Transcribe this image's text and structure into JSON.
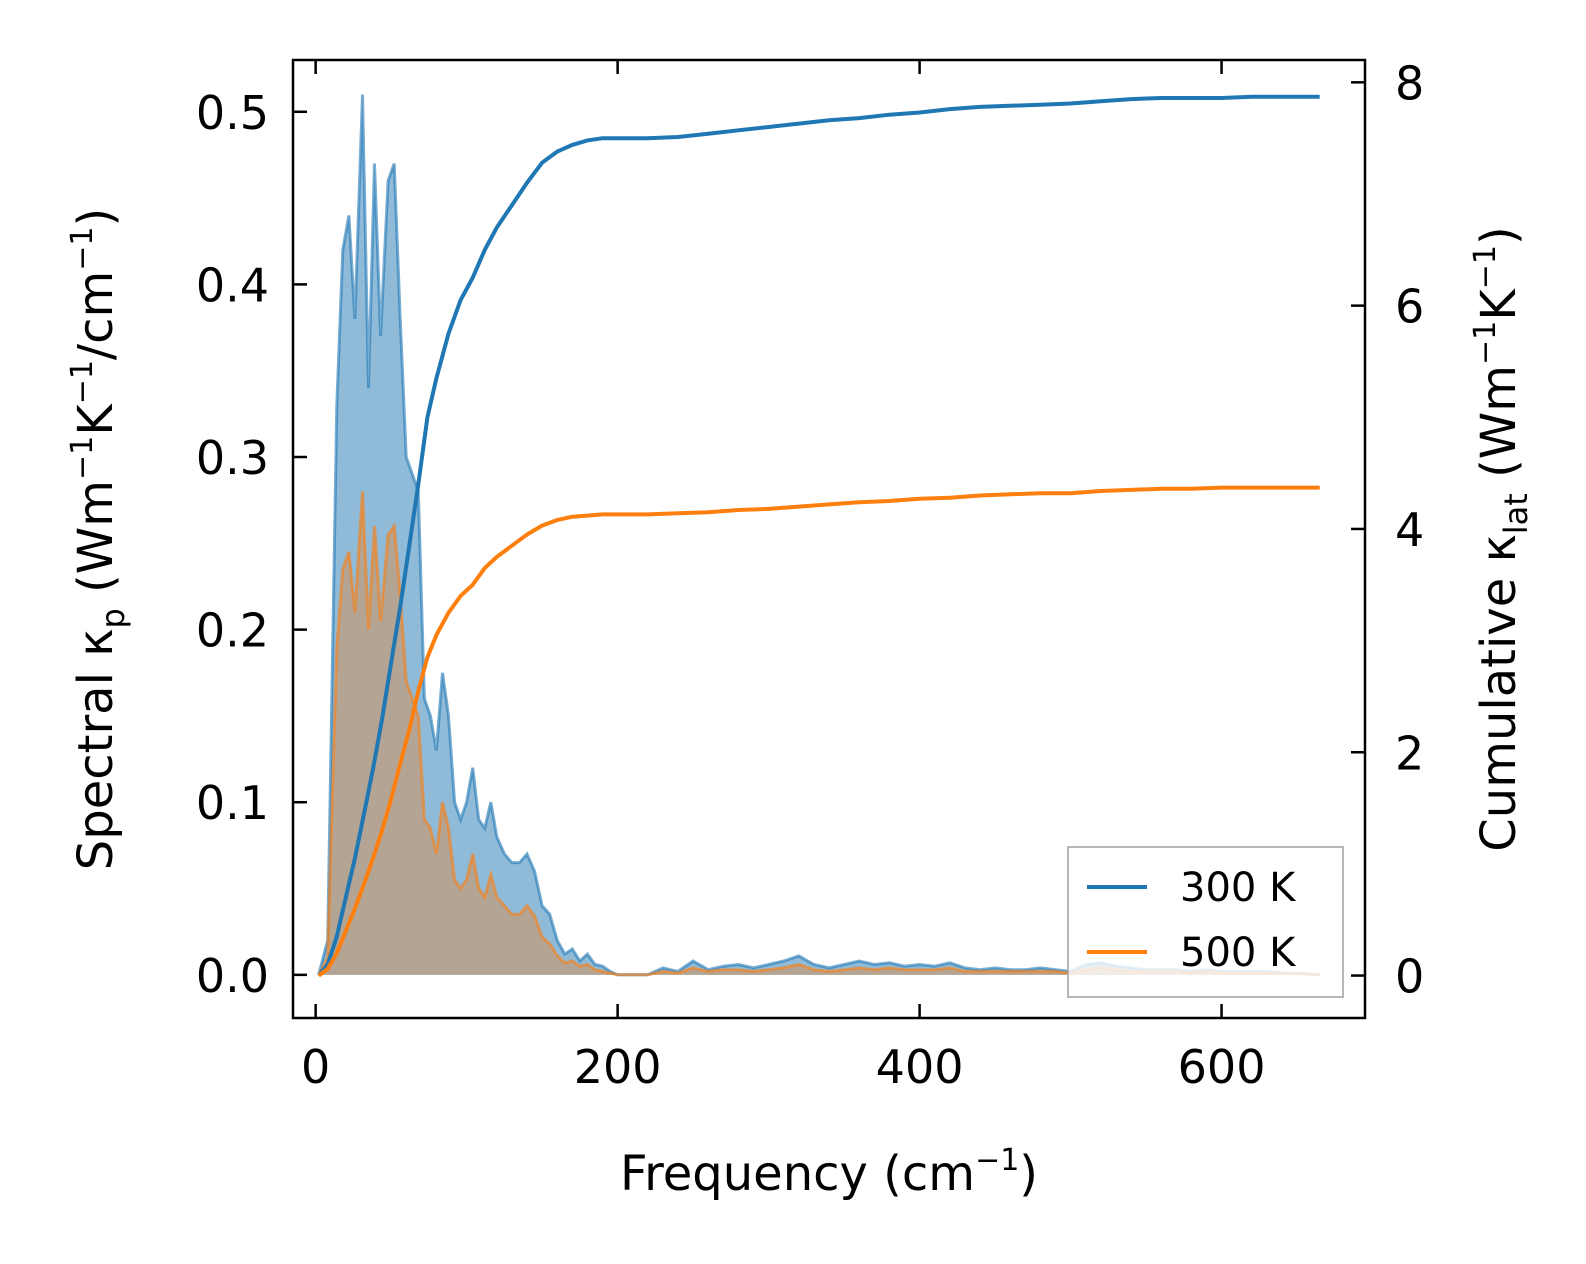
{
  "chart_data": {
    "type": "area",
    "xlabel": "Frequency (cm",
    "xlabel_sup": "−1",
    "xlabel_tail": ")",
    "ylabel_left": {
      "pre": "Spectral κ",
      "sub": "p",
      "mid1": " (Wm",
      "sup1": "−1",
      "mid2": "K",
      "sup2": "−1",
      "mid3": "/cm",
      "sup3": "−1",
      "tail": ")"
    },
    "ylabel_right": {
      "pre": "Cumulative κ",
      "sub": "lat",
      "mid1": " (Wm",
      "sup1": "−1",
      "mid2": "K",
      "sup2": "−1",
      "tail": ")"
    },
    "xlim": [
      -15,
      695
    ],
    "ylim_left": [
      -0.025,
      0.53
    ],
    "ylim_right": [
      -0.38,
      8.2
    ],
    "x_ticks": [
      0,
      200,
      400,
      600
    ],
    "x_tick_labels": [
      "0",
      "200",
      "400",
      "600"
    ],
    "y_left_ticks": [
      0.0,
      0.1,
      0.2,
      0.3,
      0.4,
      0.5
    ],
    "y_left_tick_labels": [
      "0.0",
      "0.1",
      "0.2",
      "0.3",
      "0.4",
      "0.5"
    ],
    "y_right_ticks": [
      0,
      2,
      4,
      6,
      8
    ],
    "y_right_tick_labels": [
      "0",
      "2",
      "4",
      "6",
      "8"
    ],
    "legend_position": "bottom-right",
    "colors": {
      "s300": "#1f77b4",
      "s500": "#ff7f0e",
      "fill300": "#1f77b4",
      "fill500": "#d4915a"
    },
    "series": [
      {
        "name": "300 K",
        "spectral": [
          [
            2,
            0
          ],
          [
            8,
            0.02
          ],
          [
            14,
            0.33
          ],
          [
            18,
            0.42
          ],
          [
            22,
            0.44
          ],
          [
            26,
            0.38
          ],
          [
            31,
            0.51
          ],
          [
            35,
            0.34
          ],
          [
            39,
            0.47
          ],
          [
            43,
            0.37
          ],
          [
            48,
            0.46
          ],
          [
            52,
            0.47
          ],
          [
            56,
            0.38
          ],
          [
            60,
            0.3
          ],
          [
            64,
            0.29
          ],
          [
            68,
            0.28
          ],
          [
            72,
            0.16
          ],
          [
            76,
            0.15
          ],
          [
            80,
            0.13
          ],
          [
            84,
            0.175
          ],
          [
            88,
            0.15
          ],
          [
            92,
            0.1
          ],
          [
            96,
            0.09
          ],
          [
            100,
            0.1
          ],
          [
            104,
            0.12
          ],
          [
            108,
            0.09
          ],
          [
            112,
            0.085
          ],
          [
            116,
            0.1
          ],
          [
            120,
            0.08
          ],
          [
            125,
            0.07
          ],
          [
            130,
            0.065
          ],
          [
            135,
            0.065
          ],
          [
            140,
            0.07
          ],
          [
            145,
            0.06
          ],
          [
            150,
            0.04
          ],
          [
            155,
            0.035
          ],
          [
            160,
            0.02
          ],
          [
            165,
            0.012
          ],
          [
            170,
            0.015
          ],
          [
            175,
            0.008
          ],
          [
            180,
            0.012
          ],
          [
            185,
            0.006
          ],
          [
            190,
            0.005
          ],
          [
            195,
            0.002
          ],
          [
            200,
            0.0
          ],
          [
            210,
            0.0
          ],
          [
            220,
            0.0
          ],
          [
            230,
            0.004
          ],
          [
            240,
            0.002
          ],
          [
            250,
            0.008
          ],
          [
            260,
            0.003
          ],
          [
            270,
            0.005
          ],
          [
            280,
            0.006
          ],
          [
            290,
            0.004
          ],
          [
            300,
            0.006
          ],
          [
            310,
            0.008
          ],
          [
            320,
            0.011
          ],
          [
            330,
            0.006
          ],
          [
            340,
            0.004
          ],
          [
            350,
            0.006
          ],
          [
            360,
            0.008
          ],
          [
            370,
            0.006
          ],
          [
            380,
            0.007
          ],
          [
            390,
            0.005
          ],
          [
            400,
            0.006
          ],
          [
            410,
            0.005
          ],
          [
            420,
            0.007
          ],
          [
            430,
            0.004
          ],
          [
            440,
            0.003
          ],
          [
            450,
            0.004
          ],
          [
            460,
            0.003
          ],
          [
            470,
            0.003
          ],
          [
            480,
            0.004
          ],
          [
            490,
            0.003
          ],
          [
            500,
            0.002
          ],
          [
            510,
            0.006
          ],
          [
            520,
            0.007
          ],
          [
            530,
            0.005
          ],
          [
            540,
            0.004
          ],
          [
            550,
            0.003
          ],
          [
            560,
            0.003
          ],
          [
            570,
            0.003
          ],
          [
            580,
            0.002
          ],
          [
            590,
            0.003
          ],
          [
            600,
            0.002
          ],
          [
            610,
            0.002
          ],
          [
            620,
            0.002
          ],
          [
            630,
            0.002
          ],
          [
            640,
            0.001
          ],
          [
            650,
            0.001
          ],
          [
            665,
            0.0
          ]
        ],
        "cumulative": [
          [
            2,
            0
          ],
          [
            8,
            0.1
          ],
          [
            14,
            0.35
          ],
          [
            20,
            0.7
          ],
          [
            26,
            1.05
          ],
          [
            32,
            1.45
          ],
          [
            38,
            1.85
          ],
          [
            44,
            2.3
          ],
          [
            50,
            2.8
          ],
          [
            56,
            3.3
          ],
          [
            62,
            3.85
          ],
          [
            68,
            4.4
          ],
          [
            74,
            5.0
          ],
          [
            80,
            5.35
          ],
          [
            88,
            5.75
          ],
          [
            96,
            6.05
          ],
          [
            104,
            6.25
          ],
          [
            112,
            6.5
          ],
          [
            120,
            6.7
          ],
          [
            130,
            6.9
          ],
          [
            140,
            7.1
          ],
          [
            150,
            7.28
          ],
          [
            160,
            7.38
          ],
          [
            170,
            7.44
          ],
          [
            180,
            7.48
          ],
          [
            190,
            7.5
          ],
          [
            200,
            7.5
          ],
          [
            220,
            7.5
          ],
          [
            240,
            7.51
          ],
          [
            260,
            7.54
          ],
          [
            280,
            7.57
          ],
          [
            300,
            7.6
          ],
          [
            320,
            7.63
          ],
          [
            340,
            7.66
          ],
          [
            360,
            7.68
          ],
          [
            380,
            7.71
          ],
          [
            400,
            7.73
          ],
          [
            420,
            7.76
          ],
          [
            440,
            7.78
          ],
          [
            460,
            7.79
          ],
          [
            480,
            7.8
          ],
          [
            500,
            7.81
          ],
          [
            520,
            7.83
          ],
          [
            540,
            7.85
          ],
          [
            560,
            7.86
          ],
          [
            580,
            7.86
          ],
          [
            600,
            7.86
          ],
          [
            620,
            7.87
          ],
          [
            640,
            7.87
          ],
          [
            665,
            7.87
          ]
        ]
      },
      {
        "name": "500 K",
        "spectral": [
          [
            2,
            0
          ],
          [
            8,
            0.01
          ],
          [
            14,
            0.19
          ],
          [
            18,
            0.235
          ],
          [
            22,
            0.245
          ],
          [
            26,
            0.21
          ],
          [
            31,
            0.28
          ],
          [
            35,
            0.2
          ],
          [
            39,
            0.26
          ],
          [
            43,
            0.205
          ],
          [
            48,
            0.255
          ],
          [
            52,
            0.26
          ],
          [
            56,
            0.22
          ],
          [
            60,
            0.17
          ],
          [
            64,
            0.16
          ],
          [
            68,
            0.15
          ],
          [
            72,
            0.09
          ],
          [
            76,
            0.085
          ],
          [
            80,
            0.07
          ],
          [
            84,
            0.1
          ],
          [
            88,
            0.085
          ],
          [
            92,
            0.055
          ],
          [
            96,
            0.05
          ],
          [
            100,
            0.055
          ],
          [
            104,
            0.07
          ],
          [
            108,
            0.05
          ],
          [
            112,
            0.045
          ],
          [
            116,
            0.058
          ],
          [
            120,
            0.045
          ],
          [
            125,
            0.04
          ],
          [
            130,
            0.035
          ],
          [
            135,
            0.035
          ],
          [
            140,
            0.04
          ],
          [
            145,
            0.034
          ],
          [
            150,
            0.022
          ],
          [
            155,
            0.018
          ],
          [
            160,
            0.011
          ],
          [
            165,
            0.007
          ],
          [
            170,
            0.008
          ],
          [
            175,
            0.005
          ],
          [
            180,
            0.006
          ],
          [
            185,
            0.003
          ],
          [
            190,
            0.002
          ],
          [
            195,
            0.001
          ],
          [
            200,
            0.0
          ],
          [
            220,
            0.0
          ],
          [
            230,
            0.002
          ],
          [
            240,
            0.001
          ],
          [
            250,
            0.004
          ],
          [
            260,
            0.002
          ],
          [
            270,
            0.003
          ],
          [
            280,
            0.003
          ],
          [
            290,
            0.002
          ],
          [
            300,
            0.003
          ],
          [
            310,
            0.004
          ],
          [
            320,
            0.006
          ],
          [
            330,
            0.003
          ],
          [
            340,
            0.002
          ],
          [
            350,
            0.003
          ],
          [
            360,
            0.004
          ],
          [
            370,
            0.003
          ],
          [
            380,
            0.004
          ],
          [
            390,
            0.003
          ],
          [
            400,
            0.003
          ],
          [
            410,
            0.003
          ],
          [
            420,
            0.004
          ],
          [
            430,
            0.002
          ],
          [
            440,
            0.002
          ],
          [
            450,
            0.002
          ],
          [
            460,
            0.002
          ],
          [
            470,
            0.002
          ],
          [
            480,
            0.002
          ],
          [
            490,
            0.002
          ],
          [
            500,
            0.001
          ],
          [
            510,
            0.003
          ],
          [
            520,
            0.004
          ],
          [
            530,
            0.003
          ],
          [
            540,
            0.002
          ],
          [
            550,
            0.002
          ],
          [
            560,
            0.002
          ],
          [
            570,
            0.002
          ],
          [
            580,
            0.001
          ],
          [
            590,
            0.002
          ],
          [
            600,
            0.001
          ],
          [
            620,
            0.001
          ],
          [
            640,
            0.001
          ],
          [
            665,
            0.0
          ]
        ],
        "cumulative": [
          [
            2,
            0
          ],
          [
            8,
            0.06
          ],
          [
            14,
            0.2
          ],
          [
            20,
            0.4
          ],
          [
            26,
            0.6
          ],
          [
            32,
            0.82
          ],
          [
            38,
            1.05
          ],
          [
            44,
            1.3
          ],
          [
            50,
            1.58
          ],
          [
            56,
            1.9
          ],
          [
            62,
            2.2
          ],
          [
            68,
            2.55
          ],
          [
            74,
            2.85
          ],
          [
            80,
            3.05
          ],
          [
            88,
            3.25
          ],
          [
            96,
            3.4
          ],
          [
            104,
            3.5
          ],
          [
            112,
            3.65
          ],
          [
            120,
            3.75
          ],
          [
            130,
            3.85
          ],
          [
            140,
            3.95
          ],
          [
            150,
            4.03
          ],
          [
            160,
            4.08
          ],
          [
            170,
            4.11
          ],
          [
            180,
            4.12
          ],
          [
            190,
            4.13
          ],
          [
            200,
            4.13
          ],
          [
            220,
            4.13
          ],
          [
            240,
            4.14
          ],
          [
            260,
            4.15
          ],
          [
            280,
            4.17
          ],
          [
            300,
            4.18
          ],
          [
            320,
            4.2
          ],
          [
            340,
            4.22
          ],
          [
            360,
            4.24
          ],
          [
            380,
            4.25
          ],
          [
            400,
            4.27
          ],
          [
            420,
            4.28
          ],
          [
            440,
            4.3
          ],
          [
            460,
            4.31
          ],
          [
            480,
            4.32
          ],
          [
            500,
            4.32
          ],
          [
            520,
            4.34
          ],
          [
            540,
            4.35
          ],
          [
            560,
            4.36
          ],
          [
            580,
            4.36
          ],
          [
            600,
            4.37
          ],
          [
            620,
            4.37
          ],
          [
            640,
            4.37
          ],
          [
            665,
            4.37
          ]
        ]
      }
    ]
  }
}
